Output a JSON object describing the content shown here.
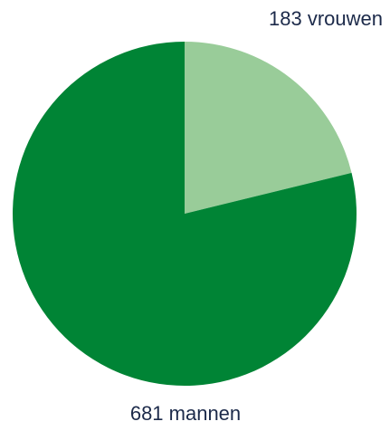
{
  "chart_data": {
    "type": "pie",
    "slices": [
      {
        "label": "183 vrouwen",
        "value": 183,
        "color": "#99cc99"
      },
      {
        "label": "681 mannen",
        "value": 681,
        "color": "#008435"
      }
    ]
  }
}
